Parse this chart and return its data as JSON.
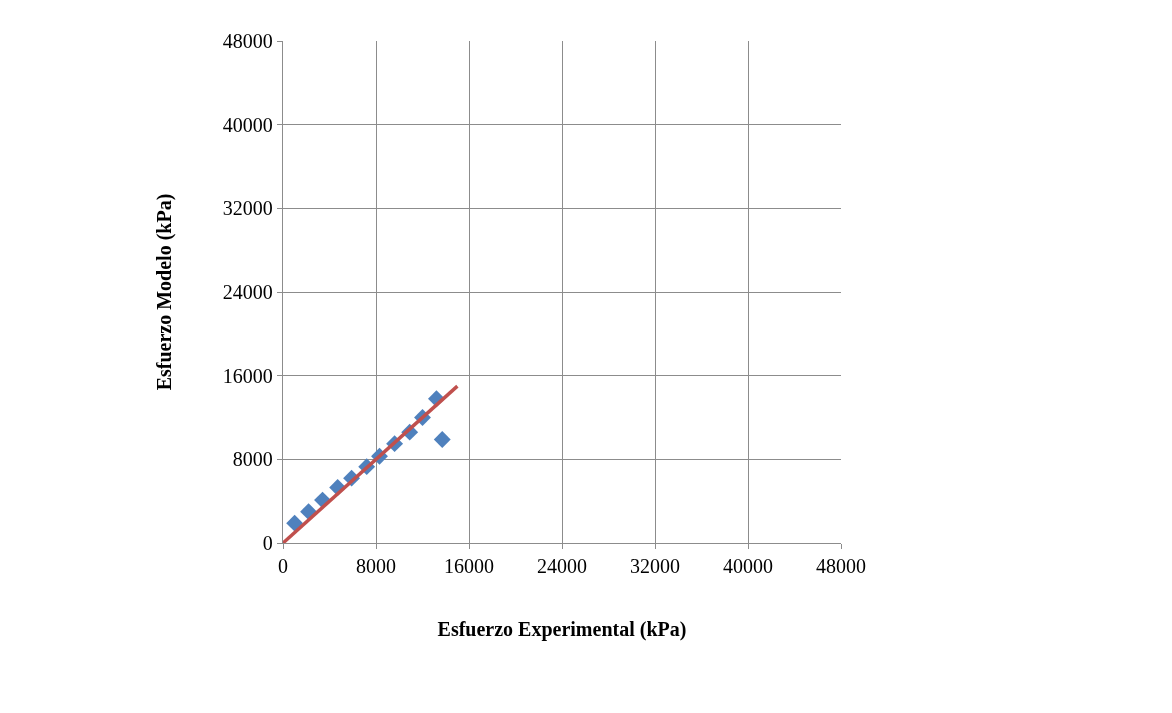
{
  "chart_data": {
    "type": "scatter",
    "xlabel": "Esfuerzo Experimental (kPa)",
    "ylabel": "Esfuerzo Modelo (kPa)",
    "xlim": [
      0,
      48000
    ],
    "xticks": [
      0,
      8000,
      16000,
      24000,
      32000,
      40000,
      48000
    ],
    "ylim": [
      0,
      48000
    ],
    "yticks": [
      0,
      8000,
      16000,
      24000,
      32000,
      40000,
      48000
    ],
    "grid": true,
    "marker": "diamond",
    "series": [
      {
        "color": "#4f81bd",
        "x": [
          1000,
          2200,
          3400,
          4700,
          5900,
          7200,
          8300,
          9600,
          10900,
          12000,
          13200,
          13700
        ],
        "values": [
          1900,
          3000,
          4100,
          5300,
          6200,
          7300,
          8300,
          9500,
          10600,
          12000,
          13800,
          9900
        ]
      },
      {
        "type": "line",
        "marker": "none",
        "color": "#c0504d",
        "x": [
          0,
          15000
        ],
        "values": [
          0,
          15000
        ]
      }
    ]
  }
}
